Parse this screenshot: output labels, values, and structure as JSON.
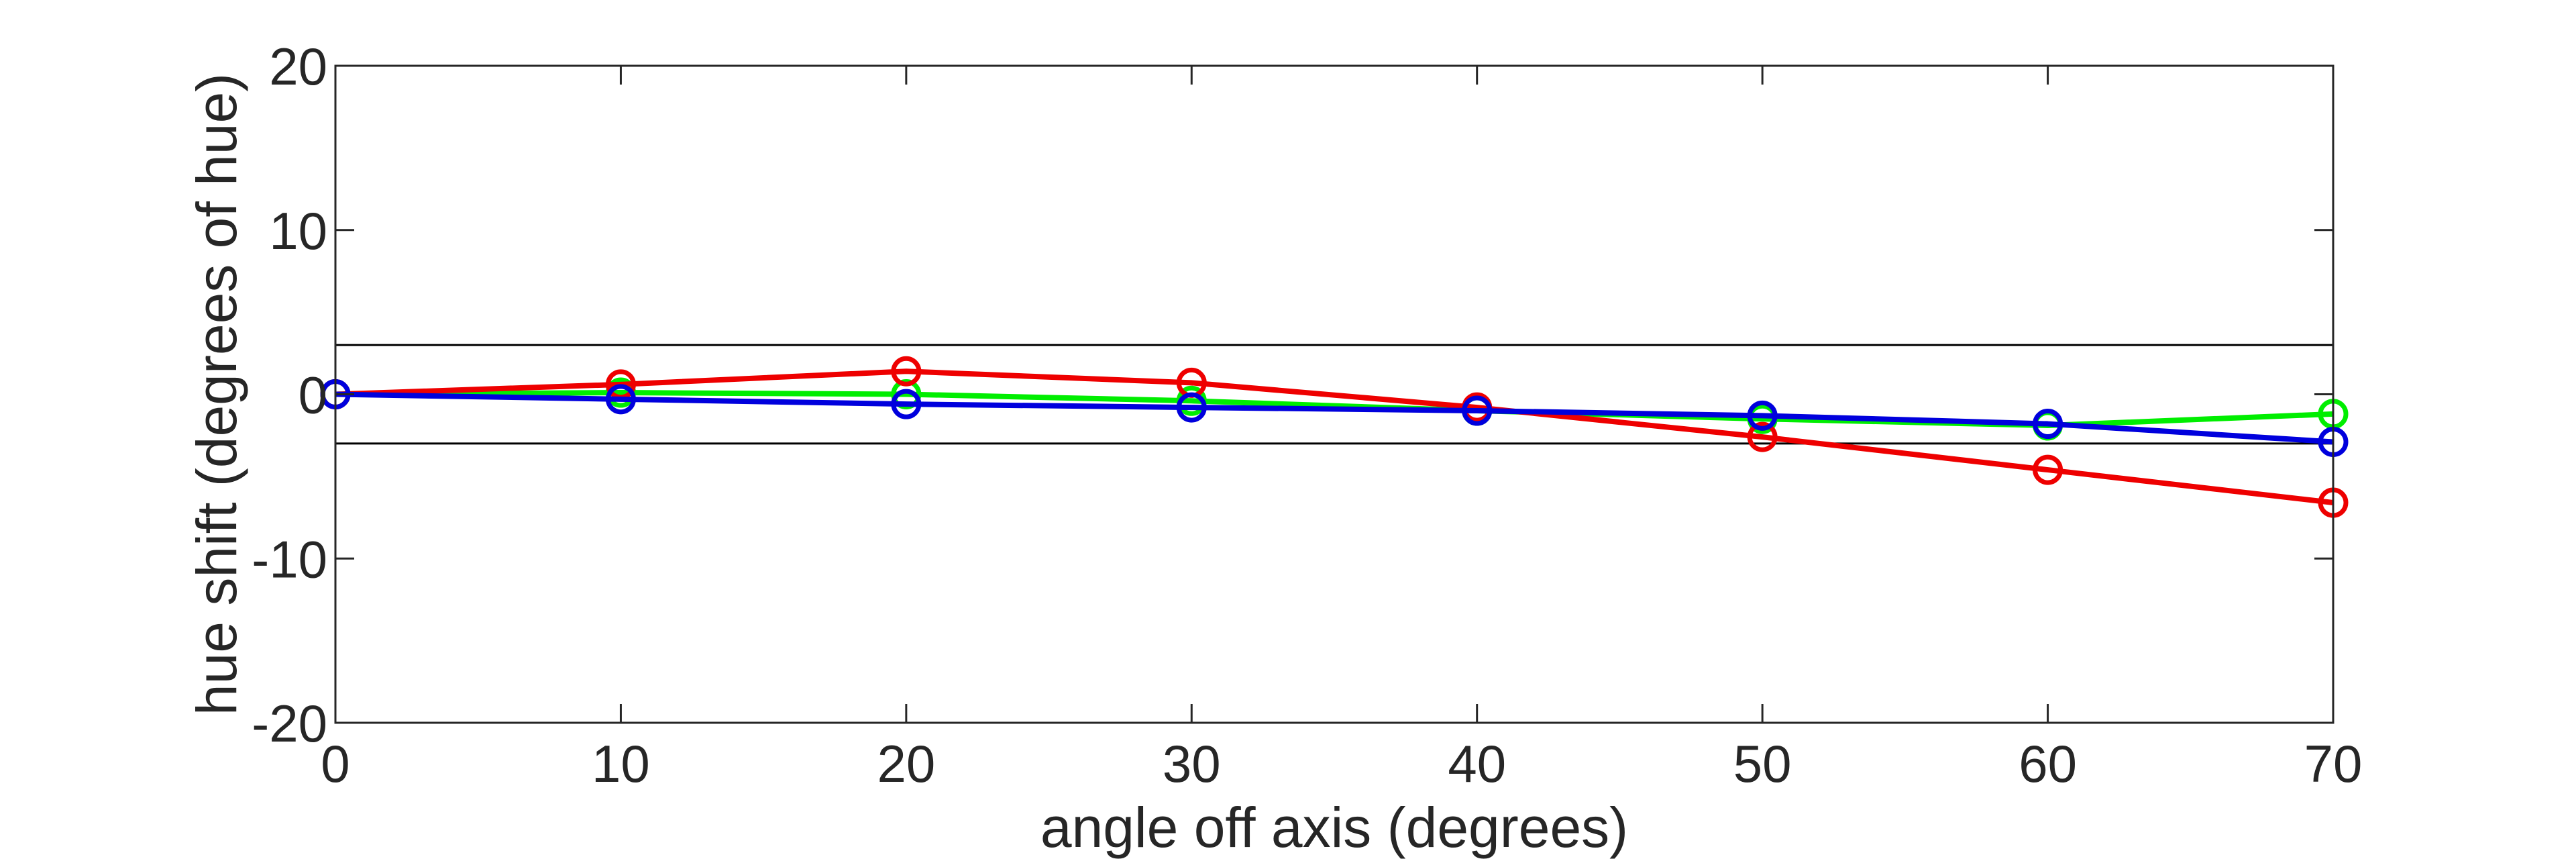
{
  "chart_data": {
    "type": "line",
    "title": "",
    "xlabel": "angle off axis (degrees)",
    "ylabel": "hue shift (degrees of hue)",
    "xlim": [
      0,
      70
    ],
    "ylim": [
      -20,
      20
    ],
    "x_ticks": [
      "0",
      "10",
      "20",
      "30",
      "40",
      "50",
      "60",
      "70"
    ],
    "y_ticks": [
      "-20",
      "-10",
      "0",
      "10",
      "20"
    ],
    "x_tick_values": [
      0,
      10,
      20,
      30,
      40,
      50,
      60,
      70
    ],
    "y_tick_values": [
      -20,
      -10,
      0,
      10,
      20
    ],
    "grid": false,
    "reference_lines": [
      3,
      -3
    ],
    "x": [
      0,
      10,
      20,
      30,
      40,
      50,
      60,
      70
    ],
    "series": [
      {
        "color": "#00ee00",
        "values": [
          0,
          0.1,
          0.0,
          -0.4,
          -1.0,
          -1.5,
          -1.9,
          -1.2
        ]
      },
      {
        "color": "#ee0000",
        "values": [
          0,
          0.6,
          1.4,
          0.7,
          -0.8,
          -2.6,
          -4.6,
          -6.6
        ]
      },
      {
        "color": "#0000dd",
        "values": [
          0,
          -0.3,
          -0.6,
          -0.8,
          -1.0,
          -1.3,
          -1.8,
          -2.9
        ]
      }
    ]
  }
}
